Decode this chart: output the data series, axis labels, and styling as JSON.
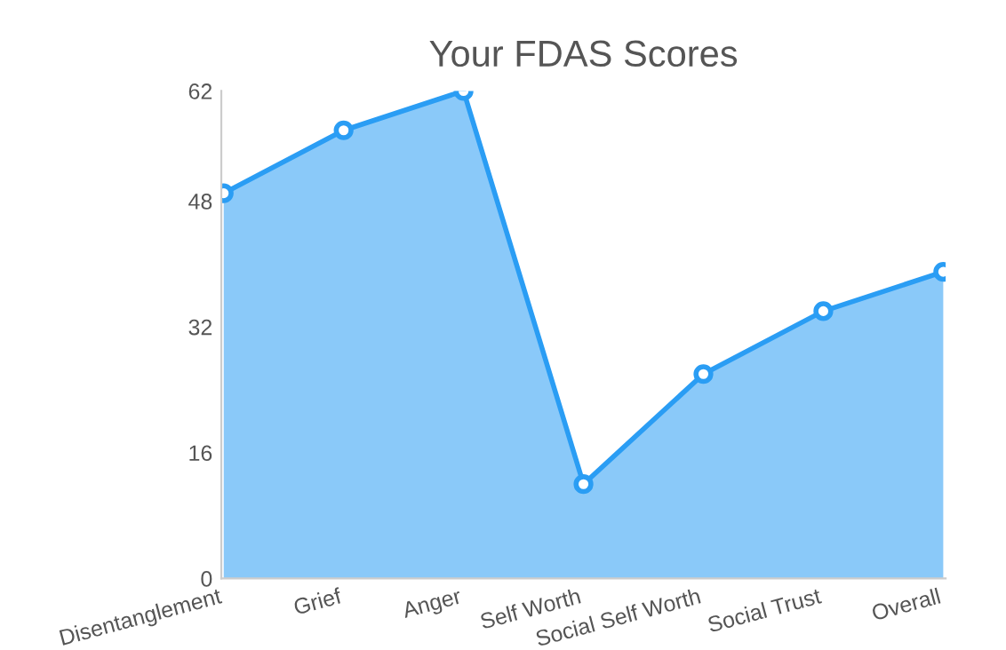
{
  "chart_data": {
    "type": "area",
    "title": "Your FDAS Scores",
    "categories": [
      "Disentanglement",
      "Grief",
      "Anger",
      "Self Worth",
      "Social Self Worth",
      "Social Trust",
      "Overall"
    ],
    "series": [
      {
        "color": "#2a9df4",
        "values": [
          49,
          57,
          62,
          12,
          26,
          34,
          39
        ]
      }
    ],
    "ylim": [
      0,
      62
    ],
    "yticks": [
      0,
      16,
      32,
      48,
      62
    ],
    "grid": false,
    "marker": "circle",
    "line_style": "solid"
  }
}
